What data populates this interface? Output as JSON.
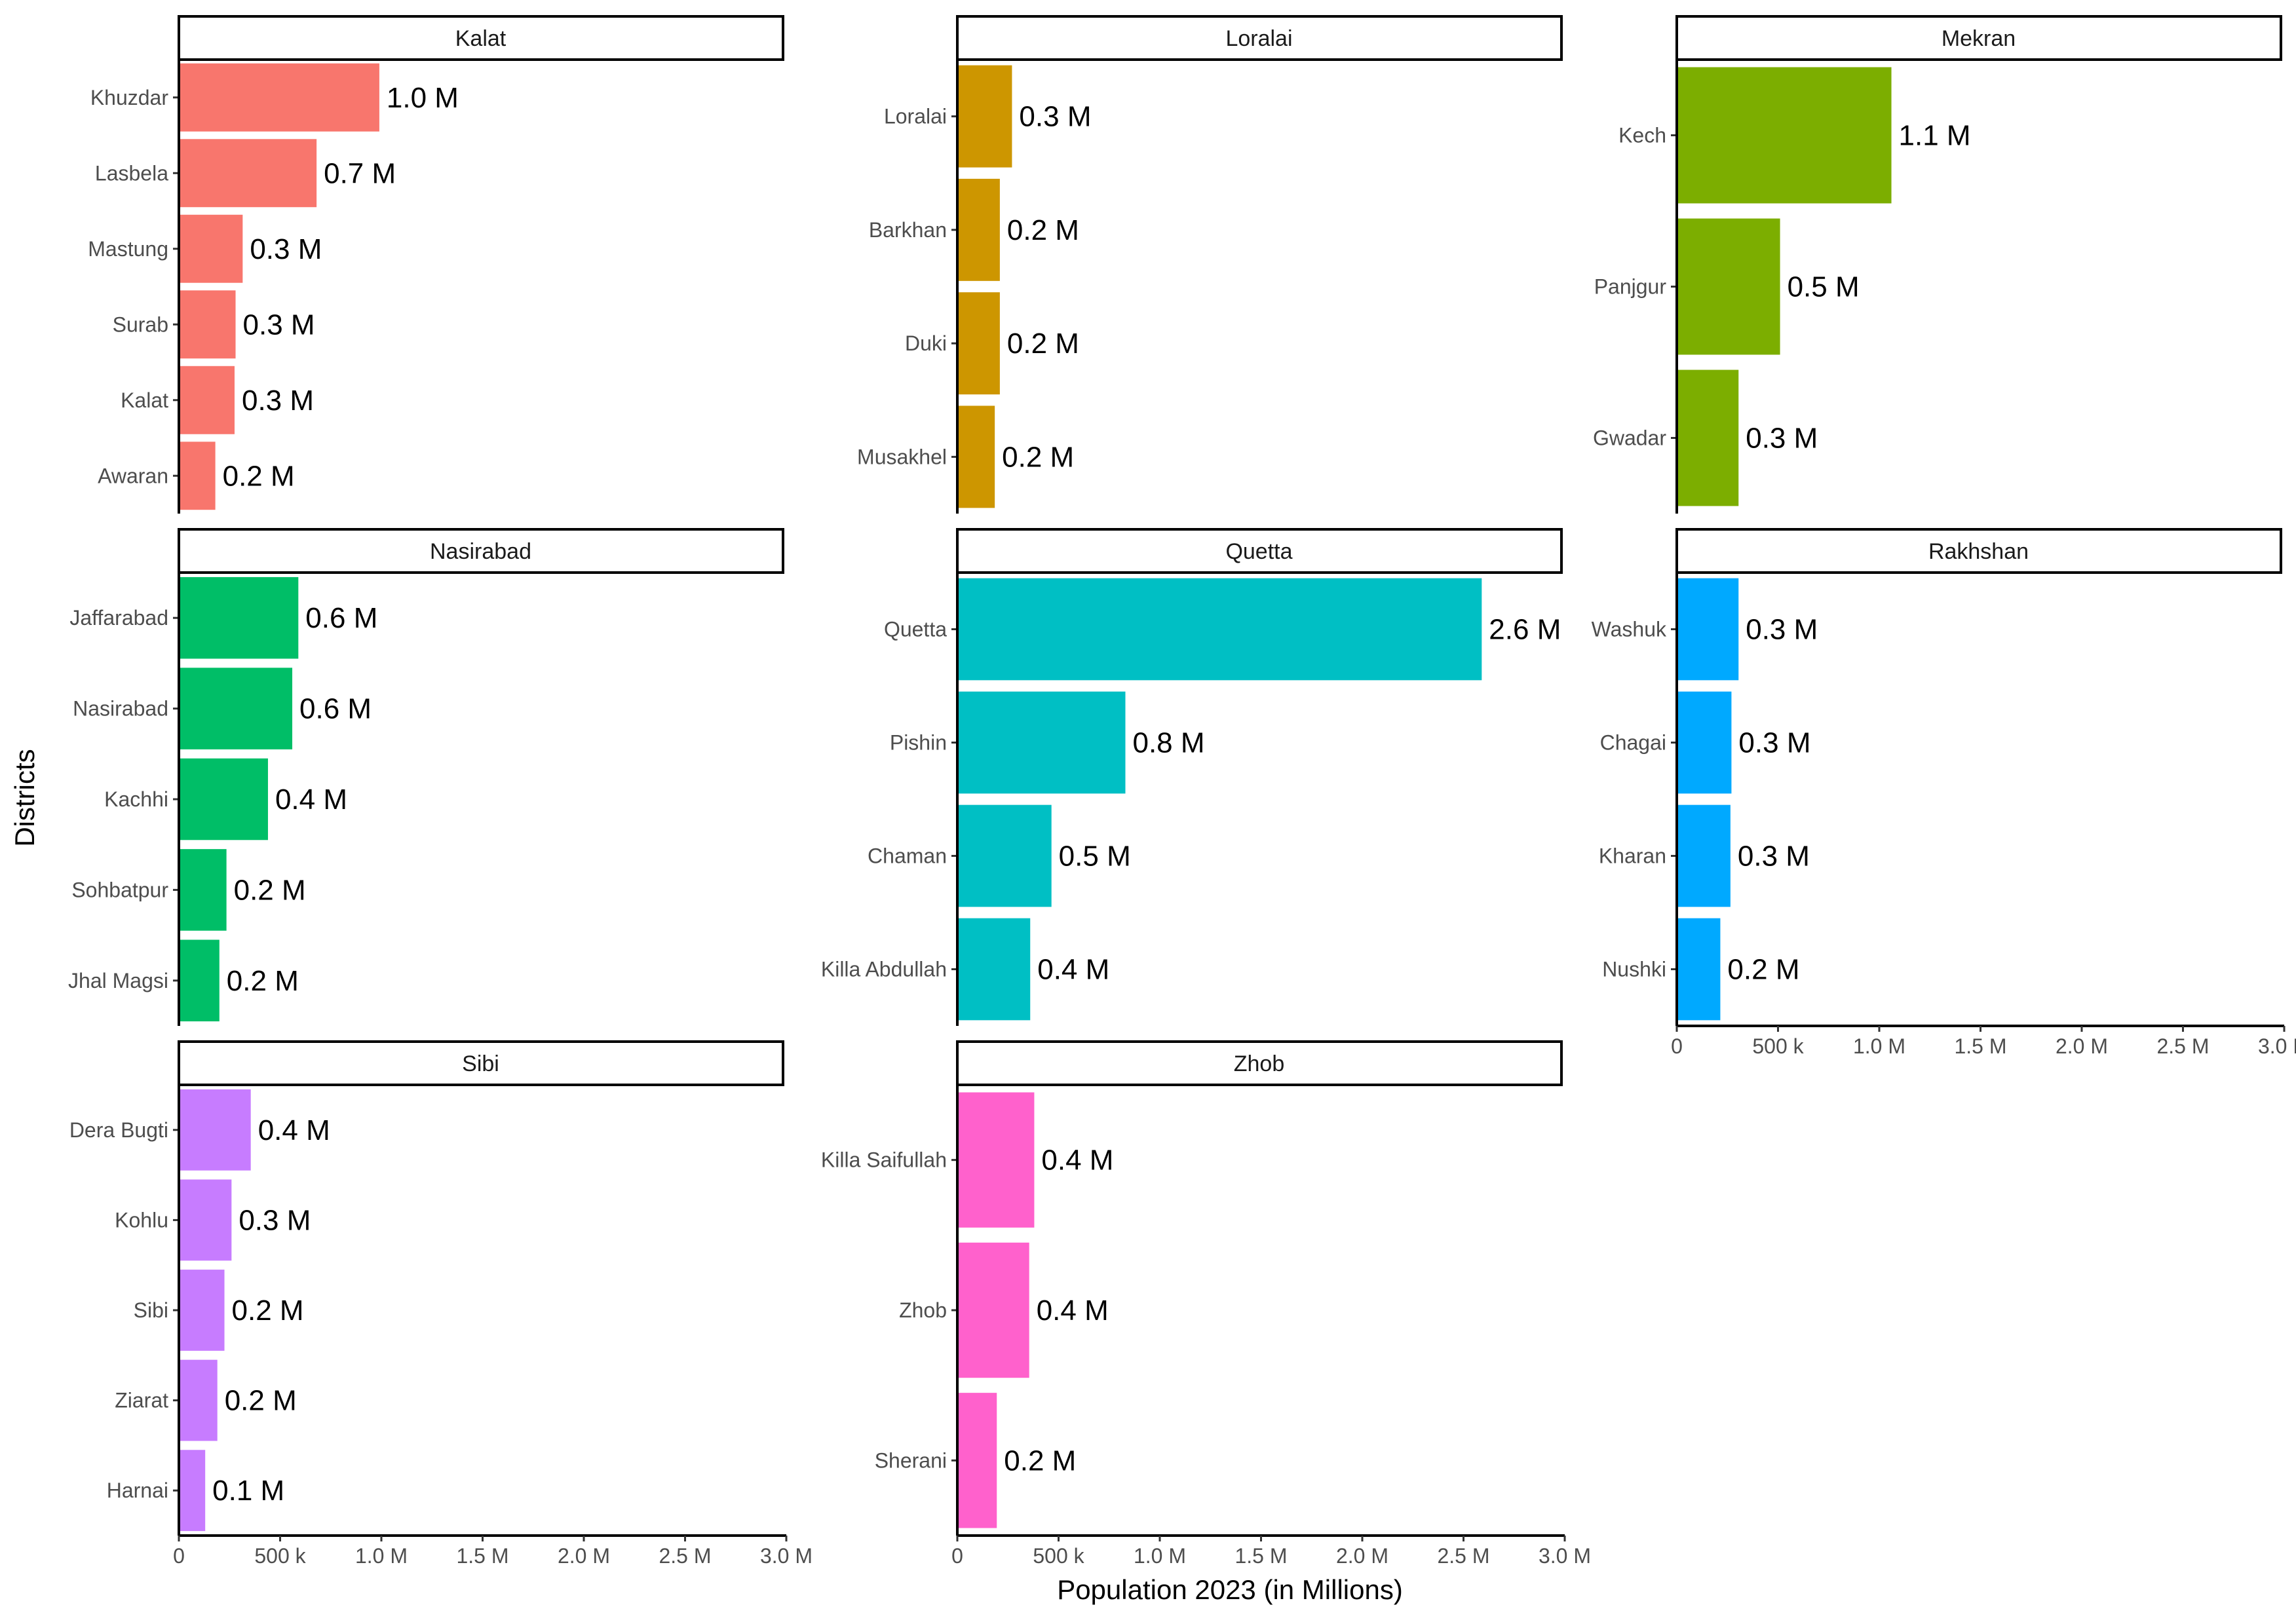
{
  "chart_data": {
    "type": "bar",
    "orientation": "horizontal",
    "xlabel": "Population 2023 (in Millions)",
    "ylabel": "Districts",
    "xlim": [
      0,
      3000000
    ],
    "x_ticks": [
      {
        "value": 0,
        "label": "0"
      },
      {
        "value": 500000,
        "label": "500 k"
      },
      {
        "value": 1000000,
        "label": "1.0 M"
      },
      {
        "value": 1500000,
        "label": "1.5 M"
      },
      {
        "value": 2000000,
        "label": "2.0 M"
      },
      {
        "value": 2500000,
        "label": "2.5 M"
      },
      {
        "value": 3000000,
        "label": "3.0 M"
      }
    ],
    "grid": false,
    "legend": "none",
    "facets": [
      {
        "title": "Kalat",
        "color": "#F8766D",
        "categories": [
          "Khuzdar",
          "Lasbela",
          "Mastung",
          "Surab",
          "Kalat",
          "Awaran"
        ],
        "values": [
          990000,
          680000,
          315000,
          280000,
          275000,
          180000
        ],
        "labels": [
          "1.0 M",
          "0.7 M",
          "0.3 M",
          "0.3 M",
          "0.3 M",
          "0.2 M"
        ]
      },
      {
        "title": "Loralai",
        "color": "#CD9600",
        "categories": [
          "Loralai",
          "Barkhan",
          "Duki",
          "Musakhel"
        ],
        "values": [
          270000,
          210000,
          210000,
          185000
        ],
        "labels": [
          "0.3 M",
          "0.2 M",
          "0.2 M",
          "0.2 M"
        ]
      },
      {
        "title": "Mekran",
        "color": "#7CAE00",
        "categories": [
          "Kech",
          "Panjgur",
          "Gwadar"
        ],
        "values": [
          1060000,
          510000,
          305000
        ],
        "labels": [
          "1.1 M",
          "0.5 M",
          "0.3 M"
        ]
      },
      {
        "title": "Nasirabad",
        "color": "#00BE67",
        "categories": [
          "Jaffarabad",
          "Nasirabad",
          "Kachhi",
          "Sohbatpur",
          "Jhal Magsi"
        ],
        "values": [
          590000,
          560000,
          440000,
          235000,
          200000
        ],
        "labels": [
          "0.6 M",
          "0.6 M",
          "0.4 M",
          "0.2 M",
          "0.2 M"
        ]
      },
      {
        "title": "Quetta",
        "color": "#00BFC4",
        "categories": [
          "Quetta",
          "Pishin",
          "Chaman",
          "Killa Abdullah"
        ],
        "values": [
          2590000,
          830000,
          465000,
          360000
        ],
        "labels": [
          "2.6 M",
          "0.8 M",
          "0.5 M",
          "0.4 M"
        ]
      },
      {
        "title": "Rakhshan",
        "color": "#00A9FF",
        "categories": [
          "Washuk",
          "Chagai",
          "Kharan",
          "Nushki"
        ],
        "values": [
          305000,
          270000,
          265000,
          215000
        ],
        "labels": [
          "0.3 M",
          "0.3 M",
          "0.3 M",
          "0.2 M"
        ]
      },
      {
        "title": "Sibi",
        "color": "#C77CFF",
        "categories": [
          "Dera Bugti",
          "Kohlu",
          "Sibi",
          "Ziarat",
          "Harnai"
        ],
        "values": [
          355000,
          260000,
          225000,
          190000,
          130000
        ],
        "labels": [
          "0.4 M",
          "0.3 M",
          "0.2 M",
          "0.2 M",
          "0.1 M"
        ]
      },
      {
        "title": "Zhob",
        "color": "#FF61CC",
        "categories": [
          "Killa Saifullah",
          "Zhob",
          "Sherani"
        ],
        "values": [
          380000,
          355000,
          195000
        ],
        "labels": [
          "0.4 M",
          "0.4 M",
          "0.2 M"
        ]
      }
    ]
  }
}
